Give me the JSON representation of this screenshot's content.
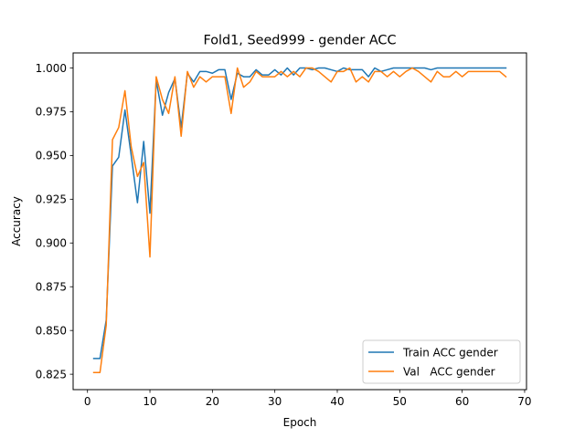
{
  "chart_data": {
    "type": "line",
    "title": "Fold1, Seed999 - gender ACC",
    "xlabel": "Epoch",
    "ylabel": "Accuracy",
    "xlim": [
      -2.3,
      70.3
    ],
    "ylim": [
      0.8162,
      1.0086
    ],
    "xticks": [
      0,
      10,
      20,
      30,
      40,
      50,
      60,
      70
    ],
    "yticks": [
      0.825,
      0.85,
      0.875,
      0.9,
      0.925,
      0.95,
      0.975,
      1.0
    ],
    "ytick_labels": [
      "0.825",
      "0.850",
      "0.875",
      "0.900",
      "0.925",
      "0.950",
      "0.975",
      "1.000"
    ],
    "legend_position": "lower right",
    "grid": false,
    "x": [
      1,
      2,
      3,
      4,
      5,
      6,
      7,
      8,
      9,
      10,
      11,
      12,
      13,
      14,
      15,
      16,
      17,
      18,
      19,
      20,
      21,
      22,
      23,
      24,
      25,
      26,
      27,
      28,
      29,
      30,
      31,
      32,
      33,
      34,
      35,
      36,
      37,
      38,
      39,
      40,
      41,
      42,
      43,
      44,
      45,
      46,
      47,
      48,
      49,
      50,
      51,
      52,
      53,
      54,
      55,
      56,
      57,
      58,
      59,
      60,
      61,
      62,
      63,
      64,
      65,
      66,
      67
    ],
    "series": [
      {
        "name": "Train ACC gender",
        "color": "#1f77b4",
        "values": [
          0.834,
          0.834,
          0.856,
          0.944,
          0.949,
          0.976,
          0.95,
          0.923,
          0.958,
          0.917,
          0.993,
          0.973,
          0.986,
          0.994,
          0.966,
          0.997,
          0.992,
          0.998,
          0.998,
          0.997,
          0.999,
          0.999,
          0.982,
          0.997,
          0.995,
          0.995,
          0.999,
          0.996,
          0.996,
          0.999,
          0.996,
          1.0,
          0.996,
          1.0,
          1.0,
          0.999,
          1.0,
          1.0,
          0.999,
          0.998,
          1.0,
          0.999,
          0.999,
          0.999,
          0.995,
          1.0,
          0.998,
          0.999,
          1.0,
          1.0,
          1.0,
          1.0,
          1.0,
          1.0,
          0.999,
          1.0,
          1.0,
          1.0,
          1.0,
          1.0,
          1.0,
          1.0,
          1.0,
          1.0,
          1.0,
          1.0,
          1.0
        ]
      },
      {
        "name": "Val   ACC gender",
        "color": "#ff7f0e",
        "values": [
          0.826,
          0.826,
          0.853,
          0.959,
          0.966,
          0.987,
          0.955,
          0.938,
          0.946,
          0.892,
          0.995,
          0.982,
          0.974,
          0.995,
          0.961,
          0.998,
          0.989,
          0.995,
          0.992,
          0.995,
          0.995,
          0.995,
          0.974,
          1.0,
          0.989,
          0.992,
          0.998,
          0.995,
          0.995,
          0.995,
          0.998,
          0.995,
          0.998,
          0.995,
          1.0,
          1.0,
          0.998,
          0.995,
          0.992,
          0.998,
          0.998,
          1.0,
          0.992,
          0.995,
          0.992,
          0.998,
          0.998,
          0.995,
          0.998,
          0.995,
          0.998,
          1.0,
          0.998,
          0.995,
          0.992,
          0.998,
          0.995,
          0.995,
          0.998,
          0.995,
          0.998,
          0.998,
          0.998,
          0.998,
          0.998,
          0.998,
          0.995
        ]
      }
    ]
  }
}
